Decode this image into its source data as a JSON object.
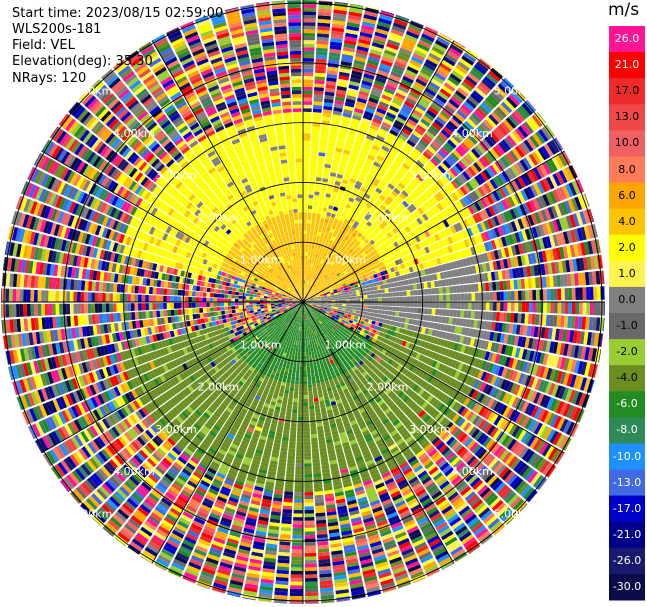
{
  "header": {
    "start_time": "Start time: 2023/08/15 02:59:00",
    "instrument": "WLS200s-181",
    "field": "Field: VEL",
    "elevation": "Elevation(deg): 35.30",
    "nrays": "NRays: 120"
  },
  "chart_data": {
    "type": "ppi",
    "field": "VEL",
    "units": "m/s",
    "n_rays": 120,
    "elevation_deg": 35.3,
    "range_rings_km": [
      1.0,
      2.0,
      3.0,
      4.0,
      5.0
    ],
    "ring_label": "km",
    "ring_labels": [
      "1.00km",
      "2.00km",
      "3.00km",
      "4.00km",
      "5.00km"
    ],
    "max_range_km": 5.05,
    "azimuth_lines_deg": [
      0,
      30,
      60,
      90,
      120,
      150,
      180,
      210,
      240,
      270,
      300,
      330
    ],
    "colorbar": {
      "unit": "m/s",
      "ticks": [
        "26.0",
        "21.0",
        "17.0",
        "13.0",
        "10.0",
        "8.0",
        "6.0",
        "4.0",
        "2.0",
        "1.0",
        "0.0",
        "-1.0",
        "-2.0",
        "-4.0",
        "-6.0",
        "-8.0",
        "-10.0",
        "-13.0",
        "-17.0",
        "-21.0",
        "-26.0",
        "-30.0"
      ],
      "colors": [
        "#ff1493",
        "#ff0000",
        "#ee2a2a",
        "#f04848",
        "#f06060",
        "#ff7b5a",
        "#ffa500",
        "#ffc400",
        "#ffff00",
        "#fff44f",
        "#808080",
        "#696969",
        "#9acd32",
        "#6b8e23",
        "#228b22",
        "#2e8b57",
        "#1e90ff",
        "#4169e1",
        "#0000cd",
        "#00008b",
        "#191970",
        "#0b0b4a"
      ]
    },
    "velocity_regions": [
      {
        "description": "inner ring, north sector",
        "range_km": [
          0.0,
          1.5
        ],
        "az_deg": [
          290,
          70
        ],
        "value_ms": 4.0
      },
      {
        "description": "mid ring, north",
        "range_km": [
          1.5,
          3.2
        ],
        "az_deg": [
          285,
          75
        ],
        "value_ms": 2.0
      },
      {
        "description": "east / west near horizontal",
        "range_km": [
          0.0,
          3.2
        ],
        "az_deg": [
          75,
          105
        ],
        "value_ms": 0.0
      },
      {
        "description": "inner ring, south",
        "range_km": [
          0.0,
          1.6
        ],
        "az_deg": [
          120,
          240
        ],
        "value_ms": -6.0
      },
      {
        "description": "mid ring, south",
        "range_km": [
          1.4,
          3.2
        ],
        "az_deg": [
          105,
          255
        ],
        "value_ms": -4.0
      },
      {
        "description": "outer rings",
        "range_km": [
          3.2,
          5.05
        ],
        "az_deg": [
          0,
          360
        ],
        "value_ms": "noise"
      }
    ]
  }
}
